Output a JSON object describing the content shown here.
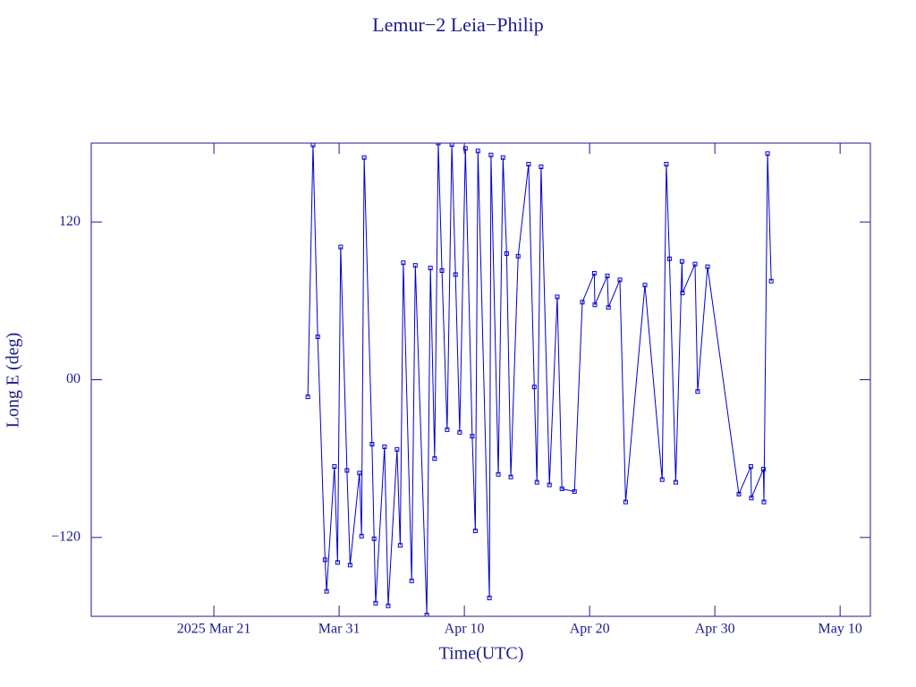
{
  "chart_data": {
    "type": "line",
    "title": "Lemur−2 Leia−Philip",
    "x_label": "Time(UTC)",
    "y_label": "Long E (deg)",
    "x": [
      "2025-03-28T12:00",
      "2025-03-28T22:00",
      "2025-03-29T07:00",
      "2025-03-29T21:00",
      "2025-03-30T00:00",
      "2025-03-30T15:00",
      "2025-03-30T21:00",
      "2025-03-31T03:00",
      "2025-03-31T15:00",
      "2025-03-31T21:00",
      "2025-04-01T15:00",
      "2025-04-01T19:00",
      "2025-04-02T00:00",
      "2025-04-02T15:00",
      "2025-04-02T19:00",
      "2025-04-02T22:00",
      "2025-04-03T15:00",
      "2025-04-03T22:00",
      "2025-04-04T15:00",
      "2025-04-04T21:00",
      "2025-04-05T03:00",
      "2025-04-05T19:00",
      "2025-04-06T02:00",
      "2025-04-07T00:00",
      "2025-04-07T07:00",
      "2025-04-07T15:00",
      "2025-04-07T22:00",
      "2025-04-08T05:00",
      "2025-04-08T15:00",
      "2025-04-09T00:00",
      "2025-04-09T07:00",
      "2025-04-09T15:00",
      "2025-04-10T02:00",
      "2025-04-10T15:00",
      "2025-04-10T21:00",
      "2025-04-11T02:00",
      "2025-04-12T00:00",
      "2025-04-12T03:00",
      "2025-04-12T17:00",
      "2025-04-13T02:00",
      "2025-04-13T09:00",
      "2025-04-13T17:00",
      "2025-04-14T07:00",
      "2025-04-15T03:00",
      "2025-04-15T14:00",
      "2025-04-15T19:00",
      "2025-04-16T03:00",
      "2025-04-16T19:00",
      "2025-04-17T10:00",
      "2025-04-17T19:00",
      "2025-04-18T19:00",
      "2025-04-19T10:00",
      "2025-04-20T09:00",
      "2025-04-20T10:00",
      "2025-04-21T10:00",
      "2025-04-21T12:00",
      "2025-04-22T10:00",
      "2025-04-22T21:00",
      "2025-04-24T10:00",
      "2025-04-25T19:00",
      "2025-04-26T03:00",
      "2025-04-26T09:00",
      "2025-04-26T21:00",
      "2025-04-27T09:00",
      "2025-04-27T10:00",
      "2025-04-28T10:00",
      "2025-04-28T15:00",
      "2025-04-29T10:00",
      "2025-05-01T22:00",
      "2025-05-02T21:00",
      "2025-05-02T22:00",
      "2025-05-03T21:00",
      "2025-05-03T22:00",
      "2025-05-04T05:00",
      "2025-05-04T12:00"
    ],
    "series": [
      {
        "name": "Long E",
        "color": "#0000cc",
        "values": [
          -13,
          178.6,
          32.7,
          -137,
          -161,
          -66,
          -139,
          101,
          -69,
          -141,
          -71,
          -119,
          169,
          -49,
          -121,
          -170,
          -51,
          -172,
          -53,
          -126,
          89,
          -153,
          87,
          -179,
          85,
          -60,
          180,
          83,
          -38,
          179,
          80,
          -40,
          176,
          -43,
          -115,
          174,
          -166,
          171,
          -72,
          169,
          96,
          -74,
          94,
          164,
          -5.5,
          -78,
          162,
          -80,
          63,
          -83,
          -85,
          59,
          81,
          57,
          79,
          55,
          76,
          -93,
          72,
          -76,
          164,
          92,
          -78,
          90,
          66,
          88,
          -9,
          86,
          -87,
          -66,
          -90,
          -68,
          -93,
          172,
          75
        ]
      }
    ],
    "xlim": [
      "2025-03-11T05:00",
      "2025-05-12T10:00"
    ],
    "xticks": [
      {
        "value": "2025-03-21",
        "label": "2025 Mar 21"
      },
      {
        "value": "2025-03-31",
        "label": "Mar 31"
      },
      {
        "value": "2025-04-10",
        "label": "Apr 10"
      },
      {
        "value": "2025-04-20",
        "label": "Apr 20"
      },
      {
        "value": "2025-04-30",
        "label": "Apr 30"
      },
      {
        "value": "2025-05-10",
        "label": "May 10"
      }
    ],
    "ylim": [
      -180,
      180
    ],
    "yticks": [
      {
        "value": -120,
        "label": "−120"
      },
      {
        "value": 0,
        "label": "00"
      },
      120
    ],
    "markers": true
  }
}
